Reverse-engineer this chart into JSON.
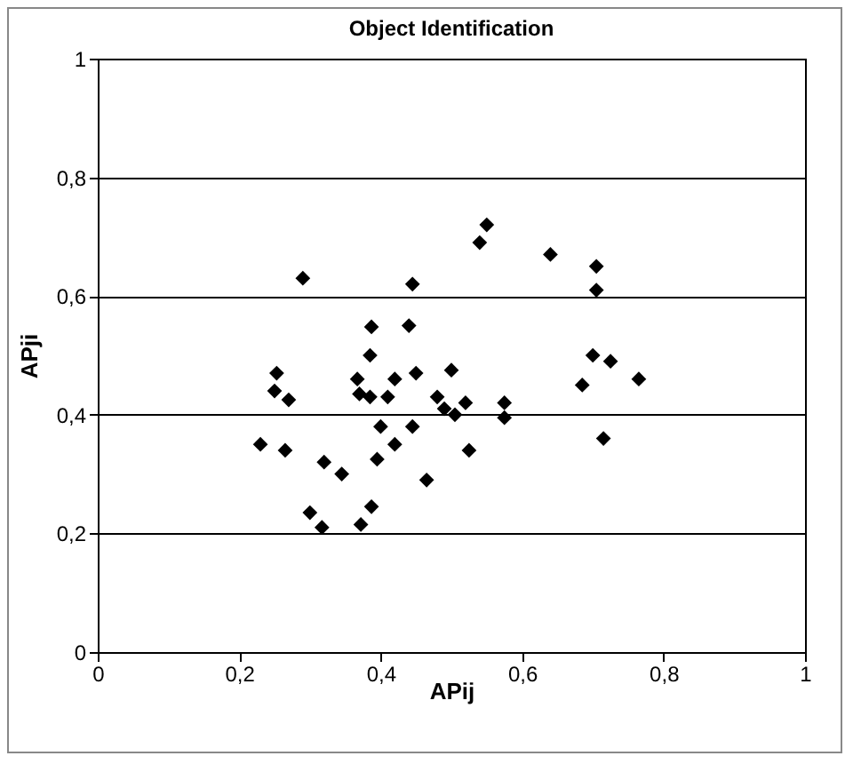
{
  "chart_data": {
    "type": "scatter",
    "title": "Object Identification",
    "xlabel": "APij",
    "ylabel": "APji",
    "xlim": [
      0,
      1
    ],
    "ylim": [
      0,
      1
    ],
    "xticks": [
      0,
      {
        "value": 0.2,
        "label": "0,2"
      },
      {
        "value": 0.4,
        "label": "0,4"
      },
      {
        "value": 0.6,
        "label": "0,6"
      },
      {
        "value": 0.8,
        "label": "0,8"
      },
      1
    ],
    "yticks": [
      0,
      {
        "value": 0.2,
        "label": "0,2"
      },
      {
        "value": 0.4,
        "label": "0,4"
      },
      {
        "value": 0.6,
        "label": "0,6"
      },
      {
        "value": 0.8,
        "label": "0,8"
      },
      1
    ],
    "grid": "y",
    "marker": "diamond",
    "legend": false,
    "series": [
      {
        "color": "#000000",
        "x": [
          0.29,
          0.55,
          0.54,
          0.445,
          0.387,
          0.44,
          0.385,
          0.253,
          0.367,
          0.42,
          0.45,
          0.5,
          0.25,
          0.27,
          0.37,
          0.385,
          0.41,
          0.48,
          0.49,
          0.505,
          0.52,
          0.575,
          0.575,
          0.4,
          0.445,
          0.23,
          0.265,
          0.42,
          0.395,
          0.32,
          0.345,
          0.525,
          0.465,
          0.3,
          0.317,
          0.387,
          0.372,
          0.64,
          0.705,
          0.705,
          0.7,
          0.725,
          0.685,
          0.765,
          0.715
        ],
        "values": [
          0.63,
          0.72,
          0.69,
          0.62,
          0.548,
          0.55,
          0.5,
          0.47,
          0.46,
          0.46,
          0.47,
          0.475,
          0.44,
          0.425,
          0.435,
          0.43,
          0.43,
          0.43,
          0.41,
          0.4,
          0.42,
          0.42,
          0.395,
          0.38,
          0.38,
          0.35,
          0.34,
          0.35,
          0.325,
          0.32,
          0.3,
          0.34,
          0.29,
          0.235,
          0.21,
          0.245,
          0.215,
          0.67,
          0.65,
          0.61,
          0.5,
          0.49,
          0.45,
          0.46,
          0.36
        ]
      }
    ]
  }
}
